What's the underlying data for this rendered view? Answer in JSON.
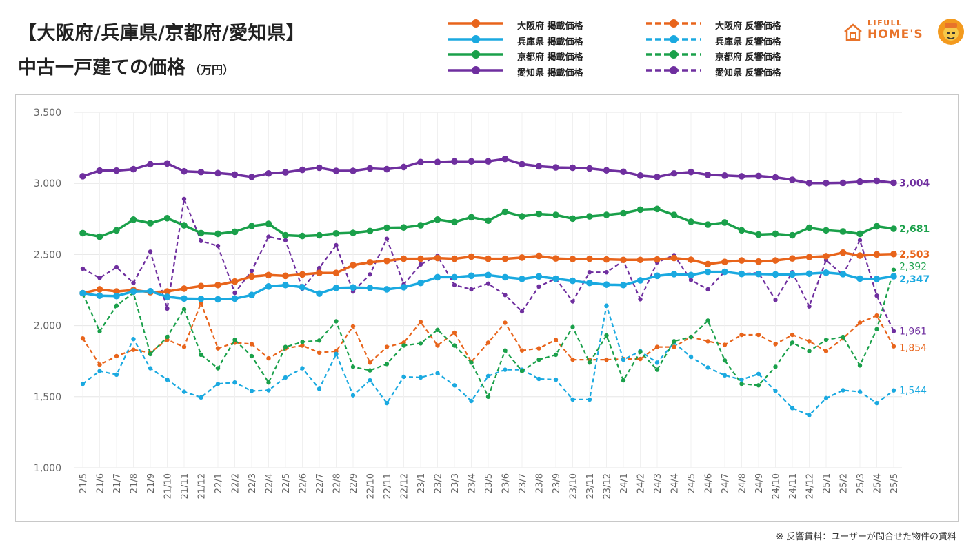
{
  "title_line1": "【大阪府/兵庫県/京都府/愛知県】",
  "title_line2": "中古一戸建ての価格",
  "title_unit": "（万円）",
  "footnote": "※ 反響賃料：ユーザーが問合せた物件の賃料",
  "logo": {
    "line1": "LIFULL",
    "line2": "HOME'S"
  },
  "colors": {
    "osaka": "#e8641b",
    "hyogo": "#1aa9e0",
    "kyoto": "#1aa04a",
    "aichi": "#6f2f9f"
  },
  "legend": [
    {
      "label": "大阪府 掲載価格",
      "color": "#e8641b",
      "dashed": false
    },
    {
      "label": "大阪府 反響価格",
      "color": "#e8641b",
      "dashed": true
    },
    {
      "label": "兵庫県 掲載価格",
      "color": "#1aa9e0",
      "dashed": false
    },
    {
      "label": "兵庫県 反響価格",
      "color": "#1aa9e0",
      "dashed": true
    },
    {
      "label": "京都府 掲載価格",
      "color": "#1aa04a",
      "dashed": false
    },
    {
      "label": "京都府 反響価格",
      "color": "#1aa04a",
      "dashed": true
    },
    {
      "label": "愛知県 掲載価格",
      "color": "#6f2f9f",
      "dashed": false
    },
    {
      "label": "愛知県 反響価格",
      "color": "#6f2f9f",
      "dashed": true
    }
  ],
  "chart_data": {
    "type": "line",
    "title": "",
    "xlabel": "",
    "ylabel": "",
    "ylim": [
      1000,
      3500
    ],
    "yticks": [
      "1,000",
      "1,500",
      "2,000",
      "2,500",
      "3,000",
      "3,500"
    ],
    "ytick_values": [
      1000,
      1500,
      2000,
      2500,
      3000,
      3500
    ],
    "grid": true,
    "legend_position": "top",
    "categories": [
      "21/5",
      "21/6",
      "21/7",
      "21/8",
      "21/9",
      "21/10",
      "21/11",
      "21/12",
      "22/1",
      "22/2",
      "22/3",
      "22/4",
      "22/5",
      "22/6",
      "22/7",
      "22/8",
      "22/9",
      "22/10",
      "22/11",
      "22/12",
      "23/1",
      "23/2",
      "23/3",
      "23/4",
      "23/5",
      "23/6",
      "23/7",
      "23/8",
      "23/9",
      "23/10",
      "23/11",
      "23/12",
      "24/1",
      "24/2",
      "24/3",
      "24/4",
      "24/5",
      "24/6",
      "24/7",
      "24/8",
      "24/9",
      "24/10",
      "24/11",
      "24/12",
      "25/1",
      "25/2",
      "25/3",
      "25/4",
      "25/5"
    ],
    "series": [
      {
        "name": "大阪府 掲載価格",
        "color": "#e8641b",
        "dashed": false,
        "end_label": "2,503",
        "values": [
          2228,
          2255,
          2240,
          2250,
          2235,
          2240,
          2260,
          2278,
          2285,
          2310,
          2345,
          2355,
          2350,
          2360,
          2370,
          2370,
          2425,
          2445,
          2455,
          2470,
          2470,
          2475,
          2470,
          2485,
          2470,
          2470,
          2478,
          2490,
          2472,
          2468,
          2470,
          2465,
          2462,
          2462,
          2465,
          2475,
          2463,
          2432,
          2448,
          2458,
          2450,
          2458,
          2472,
          2482,
          2488,
          2513,
          2492,
          2500,
          2503
        ]
      },
      {
        "name": "大阪府 反響価格",
        "color": "#e8641b",
        "dashed": true,
        "end_label": "1,854",
        "values": [
          1910,
          1725,
          1785,
          1830,
          1810,
          1900,
          1850,
          2160,
          1840,
          1880,
          1870,
          1770,
          1840,
          1860,
          1810,
          1820,
          1995,
          1740,
          1850,
          1880,
          2025,
          1860,
          1950,
          1745,
          1880,
          2020,
          1825,
          1840,
          1900,
          1760,
          1760,
          1760,
          1765,
          1765,
          1850,
          1850,
          1920,
          1890,
          1865,
          1935,
          1935,
          1870,
          1935,
          1890,
          1820,
          1910,
          2020,
          2070,
          1854
        ]
      },
      {
        "name": "兵庫県 掲載価格",
        "color": "#1aa9e0",
        "dashed": false,
        "end_label": "2,347",
        "values": [
          2228,
          2210,
          2208,
          2240,
          2242,
          2202,
          2190,
          2188,
          2185,
          2190,
          2215,
          2275,
          2285,
          2270,
          2225,
          2265,
          2268,
          2265,
          2255,
          2270,
          2300,
          2340,
          2340,
          2350,
          2355,
          2340,
          2328,
          2345,
          2330,
          2315,
          2300,
          2288,
          2285,
          2318,
          2350,
          2362,
          2355,
          2378,
          2378,
          2363,
          2363,
          2360,
          2360,
          2365,
          2372,
          2362,
          2330,
          2328,
          2347
        ]
      },
      {
        "name": "兵庫県 反響価格",
        "color": "#1aa9e0",
        "dashed": true,
        "end_label": "1,544",
        "values": [
          1590,
          1680,
          1655,
          1905,
          1700,
          1620,
          1535,
          1495,
          1590,
          1600,
          1540,
          1545,
          1635,
          1700,
          1555,
          1800,
          1510,
          1615,
          1455,
          1640,
          1635,
          1665,
          1580,
          1470,
          1645,
          1690,
          1690,
          1625,
          1620,
          1480,
          1480,
          2140,
          1760,
          1820,
          1740,
          1880,
          1780,
          1705,
          1650,
          1620,
          1660,
          1540,
          1420,
          1370,
          1490,
          1545,
          1535,
          1455,
          1544
        ]
      },
      {
        "name": "京都府 掲載価格",
        "color": "#1aa04a",
        "dashed": false,
        "end_label": "2,681",
        "values": [
          2650,
          2625,
          2670,
          2745,
          2720,
          2755,
          2705,
          2650,
          2645,
          2660,
          2700,
          2715,
          2635,
          2630,
          2635,
          2648,
          2652,
          2665,
          2688,
          2690,
          2705,
          2745,
          2728,
          2762,
          2738,
          2800,
          2768,
          2785,
          2778,
          2752,
          2768,
          2778,
          2790,
          2815,
          2820,
          2778,
          2730,
          2710,
          2725,
          2670,
          2640,
          2645,
          2635,
          2688,
          2670,
          2662,
          2645,
          2698,
          2681
        ]
      },
      {
        "name": "京都府 反響価格",
        "color": "#1aa04a",
        "dashed": true,
        "end_label": "2,392",
        "values": [
          2225,
          1960,
          2140,
          2230,
          1800,
          1920,
          2115,
          1795,
          1700,
          1900,
          1785,
          1600,
          1850,
          1885,
          1895,
          2030,
          1710,
          1685,
          1730,
          1860,
          1875,
          1970,
          1860,
          1740,
          1500,
          1825,
          1680,
          1760,
          1795,
          1990,
          1740,
          1930,
          1615,
          1815,
          1690,
          1890,
          1920,
          2035,
          1755,
          1590,
          1580,
          1710,
          1880,
          1820,
          1900,
          1920,
          1720,
          1975,
          2392
        ]
      },
      {
        "name": "愛知県 掲載価格",
        "color": "#6f2f9f",
        "dashed": false,
        "end_label": "3,004",
        "values": [
          3050,
          3090,
          3090,
          3100,
          3135,
          3140,
          3085,
          3080,
          3072,
          3062,
          3045,
          3070,
          3078,
          3095,
          3110,
          3088,
          3088,
          3105,
          3100,
          3115,
          3150,
          3150,
          3155,
          3155,
          3155,
          3172,
          3135,
          3120,
          3112,
          3110,
          3105,
          3092,
          3082,
          3055,
          3045,
          3070,
          3080,
          3060,
          3055,
          3050,
          3052,
          3042,
          3025,
          3002,
          3002,
          3004,
          3012,
          3018,
          3004
        ]
      },
      {
        "name": "愛知県 反響価格",
        "color": "#6f2f9f",
        "dashed": true,
        "end_label": "1,961",
        "values": [
          2400,
          2335,
          2410,
          2300,
          2520,
          2120,
          2890,
          2595,
          2560,
          2230,
          2385,
          2625,
          2600,
          2260,
          2405,
          2565,
          2240,
          2360,
          2610,
          2290,
          2430,
          2490,
          2285,
          2255,
          2295,
          2215,
          2100,
          2275,
          2330,
          2170,
          2375,
          2375,
          2455,
          2185,
          2445,
          2495,
          2320,
          2255,
          2380,
          2365,
          2370,
          2180,
          2375,
          2135,
          2460,
          2355,
          2600,
          2210,
          1961
        ]
      }
    ]
  }
}
